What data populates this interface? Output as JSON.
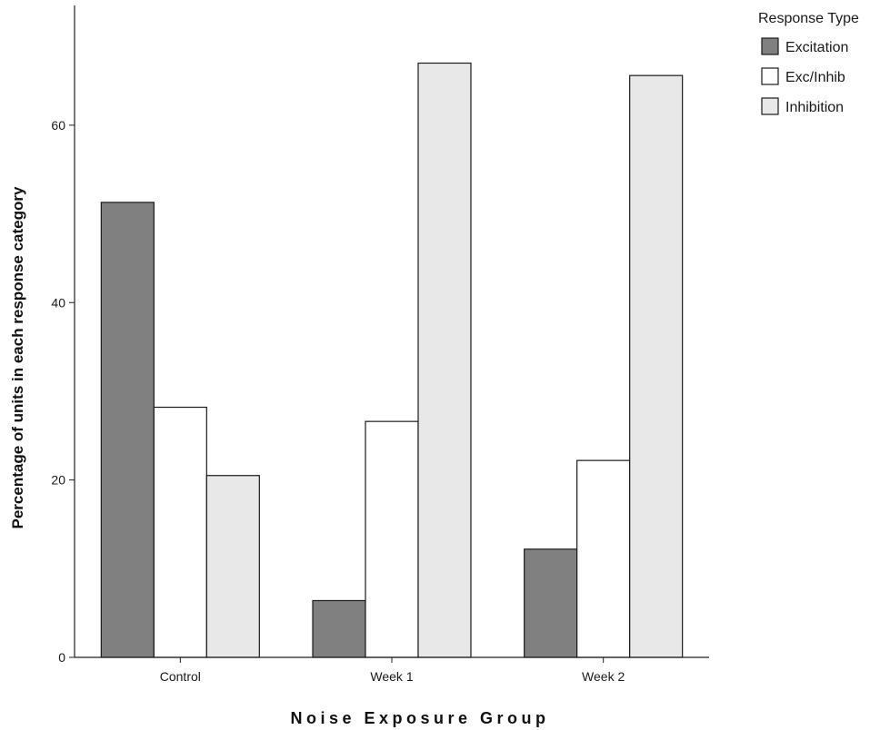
{
  "chart_data": {
    "type": "bar",
    "title": "",
    "xlabel": "Noise Exposure Group",
    "ylabel": "Percentage of units in each response category",
    "categories": [
      "Control",
      "Week 1",
      "Week 2"
    ],
    "series": [
      {
        "name": "Excitation",
        "values": [
          51.3,
          6.4,
          12.2
        ],
        "color": "#808080"
      },
      {
        "name": "Exc/Inhib",
        "values": [
          28.2,
          26.6,
          22.2
        ],
        "color": "#ffffff"
      },
      {
        "name": "Inhibition",
        "values": [
          20.5,
          67.0,
          65.6
        ],
        "color": "#e8e8e8"
      }
    ],
    "yticks": [
      0,
      20,
      40,
      60
    ],
    "ylim": [
      0,
      73.5
    ],
    "grid": false,
    "legend": {
      "title": "Response Type",
      "position": "top-right"
    }
  }
}
